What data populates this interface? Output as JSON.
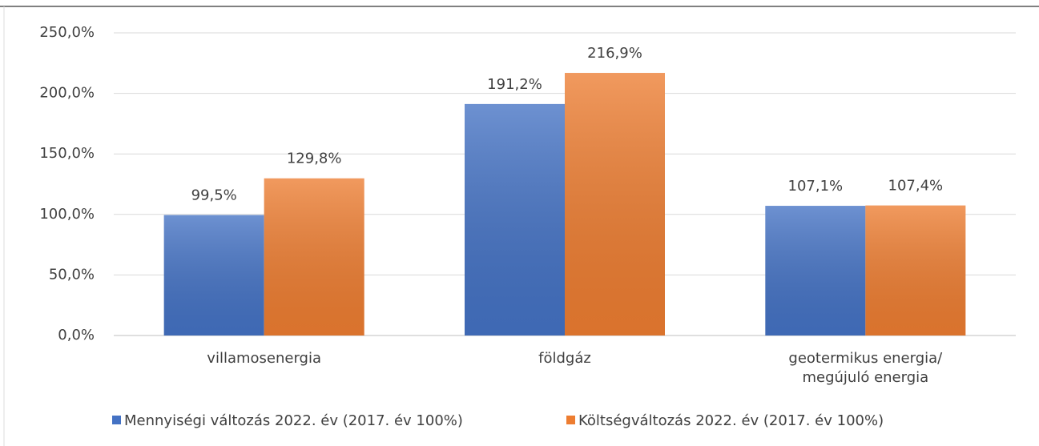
{
  "chart_data": {
    "type": "bar",
    "categories": [
      "villamosenergia",
      "földgáz",
      "geotermikus energia/\nmegújuló energia"
    ],
    "series": [
      {
        "name": "Mennyiségi változás 2022. év (2017. év 100%)",
        "color": "#4472c4",
        "values": [
          99.5,
          191.2,
          107.1
        ],
        "value_labels": [
          "99,5%",
          "191,2%",
          "107,1%"
        ]
      },
      {
        "name": "Költségváltozás 2022. év (2017. év 100%)",
        "color": "#ed7d31",
        "values": [
          129.8,
          216.9,
          107.4
        ],
        "value_labels": [
          "129,8%",
          "216,9%",
          "107,4%"
        ]
      }
    ],
    "ylim": [
      0,
      250
    ],
    "yticks": [
      {
        "value": 0,
        "label": "0,0%"
      },
      {
        "value": 50,
        "label": "50,0%"
      },
      {
        "value": 100,
        "label": "100,0%"
      },
      {
        "value": 150,
        "label": "150,0%"
      },
      {
        "value": 200,
        "label": "200,0%"
      },
      {
        "value": 250,
        "label": "250,0%"
      }
    ],
    "grid": true,
    "legend": "bottom"
  }
}
